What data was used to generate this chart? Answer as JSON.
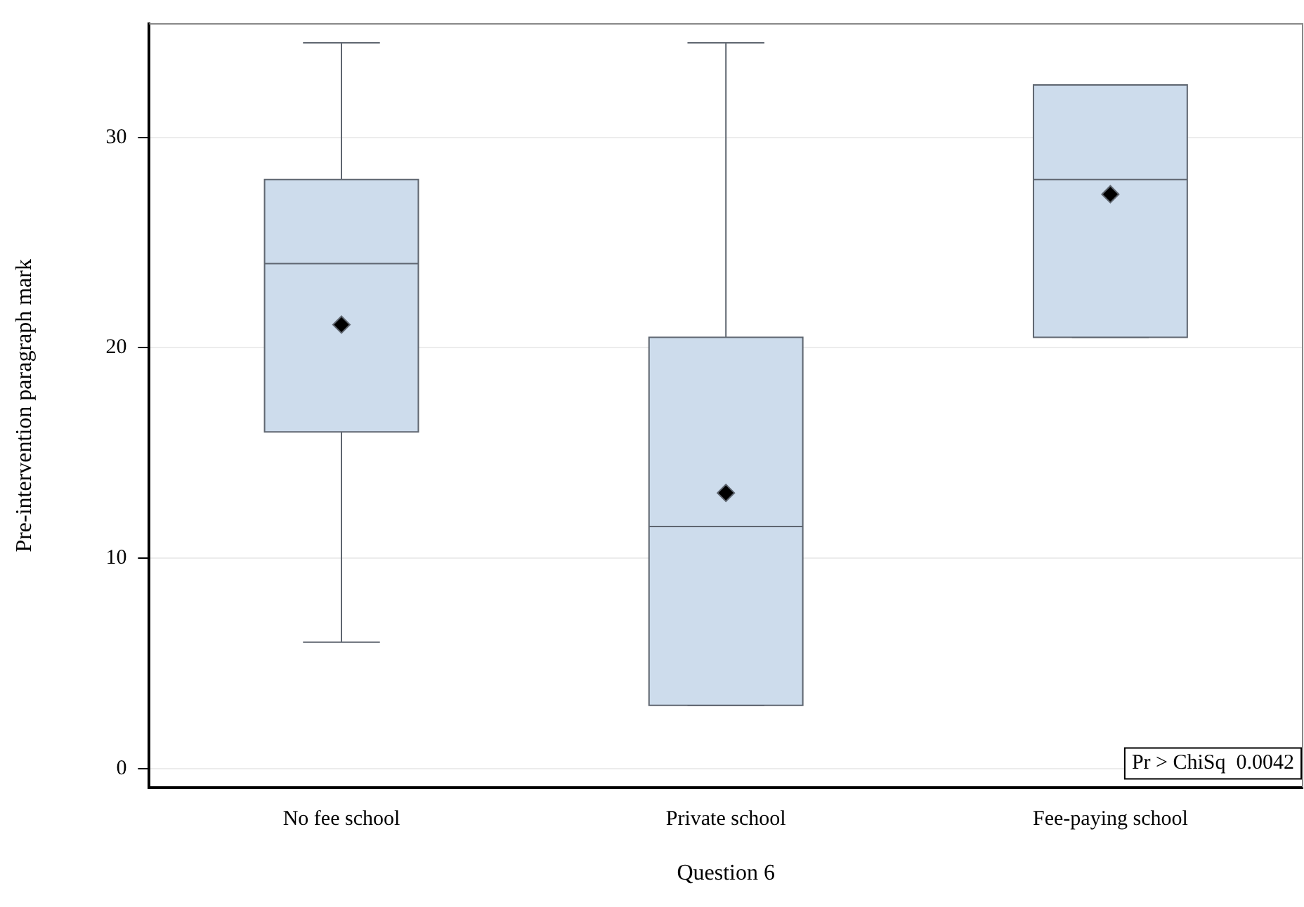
{
  "chart_data": {
    "type": "box",
    "xlabel": "Question 6",
    "ylabel": "Pre-intervention paragraph mark",
    "categories": [
      "No fee school",
      "Private school",
      "Fee-paying school"
    ],
    "boxes": [
      {
        "low": 6,
        "q1": 16,
        "median": 24,
        "q3": 28,
        "high": 34.5,
        "mean": 21.1
      },
      {
        "low": 3,
        "q1": 3,
        "median": 11.5,
        "q3": 20.5,
        "high": 34.5,
        "mean": 13.1
      },
      {
        "low": 20.5,
        "q1": 20.5,
        "median": 28,
        "q3": 32.5,
        "high": 32.5,
        "mean": 27.3
      }
    ],
    "color": "#cddcec",
    "ylim": [
      -0.9,
      35.4
    ],
    "yticks": [
      0,
      10,
      20,
      30
    ],
    "grid": "y",
    "marker": "diamond",
    "annotations": [
      "Pr > ChiSq  0.0042"
    ]
  }
}
